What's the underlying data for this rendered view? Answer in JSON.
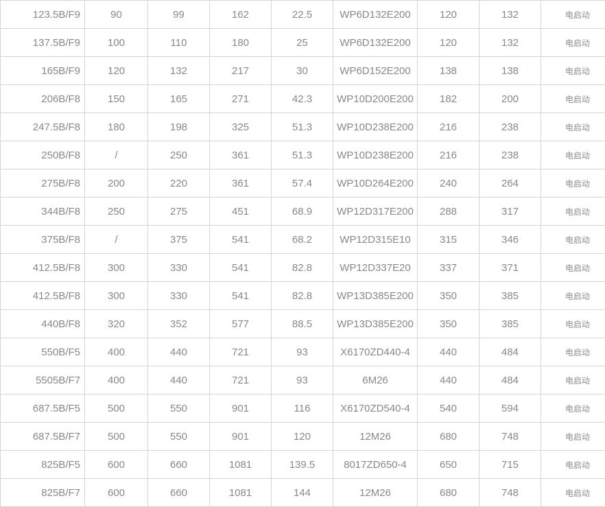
{
  "colors": {
    "text": "#85898e",
    "chinese_text": "#8d8d8d",
    "border": "#d5d5d5",
    "background": "#ffffff"
  },
  "table": {
    "rows": [
      [
        "123.5B/F9",
        "90",
        "99",
        "162",
        "22.5",
        "WP6D132E200",
        "120",
        "132",
        "电启动"
      ],
      [
        "137.5B/F9",
        "100",
        "110",
        "180",
        "25",
        "WP6D132E200",
        "120",
        "132",
        "电启动"
      ],
      [
        "165B/F9",
        "120",
        "132",
        "217",
        "30",
        "WP6D152E200",
        "138",
        "138",
        "电启动"
      ],
      [
        "206B/F8",
        "150",
        "165",
        "271",
        "42.3",
        "WP10D200E200",
        "182",
        "200",
        "电启动"
      ],
      [
        "247.5B/F8",
        "180",
        "198",
        "325",
        "51.3",
        "WP10D238E200",
        "216",
        "238",
        "电启动"
      ],
      [
        "250B/F8",
        "/",
        "250",
        "361",
        "51.3",
        "WP10D238E200",
        "216",
        "238",
        "电启动"
      ],
      [
        "275B/F8",
        "200",
        "220",
        "361",
        "57.4",
        "WP10D264E200",
        "240",
        "264",
        "电启动"
      ],
      [
        "344B/F8",
        "250",
        "275",
        "451",
        "68.9",
        "WP12D317E200",
        "288",
        "317",
        "电启动"
      ],
      [
        "375B/F8",
        "/",
        "375",
        "541",
        "68.2",
        "WP12D315E10",
        "315",
        "346",
        "电启动"
      ],
      [
        "412.5B/F8",
        "300",
        "330",
        "541",
        "82.8",
        "WP12D337E20",
        "337",
        "371",
        "电启动"
      ],
      [
        "412.5B/F8",
        "300",
        "330",
        "541",
        "82.8",
        "WP13D385E200",
        "350",
        "385",
        "电启动"
      ],
      [
        "440B/F8",
        "320",
        "352",
        "577",
        "88.5",
        "WP13D385E200",
        "350",
        "385",
        "电启动"
      ],
      [
        "550B/F5",
        "400",
        "440",
        "721",
        "93",
        "X6170ZD440-4",
        "440",
        "484",
        "电启动"
      ],
      [
        "5505B/F7",
        "400",
        "440",
        "721",
        "93",
        "6M26",
        "440",
        "484",
        "电启动"
      ],
      [
        "687.5B/F5",
        "500",
        "550",
        "901",
        "116",
        "X6170ZD540-4",
        "540",
        "594",
        "电启动"
      ],
      [
        "687.5B/F7",
        "500",
        "550",
        "901",
        "120",
        "12M26",
        "680",
        "748",
        "电启动"
      ],
      [
        "825B/F5",
        "600",
        "660",
        "1081",
        "139.5",
        "8017ZD650-4",
        "650",
        "715",
        "电启动"
      ],
      [
        "825B/F7",
        "600",
        "660",
        "1081",
        "144",
        "12M26",
        "680",
        "748",
        "电启动"
      ]
    ]
  }
}
